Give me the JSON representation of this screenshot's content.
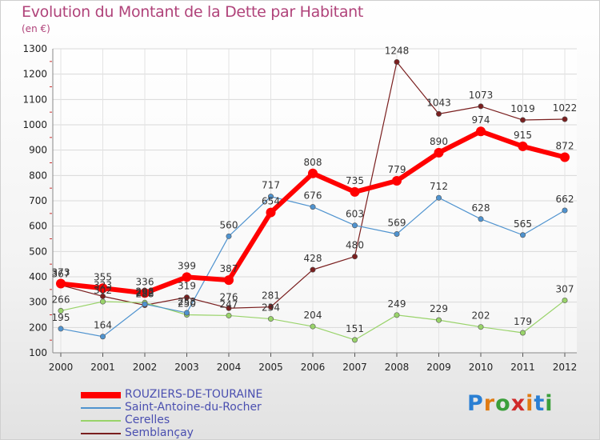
{
  "title": "Evolution du Montant de la Dette par Habitant",
  "subtitle": "(en €)",
  "logo": {
    "text": "Proxiti",
    "letters": [
      "P",
      "r",
      "o",
      "x",
      "i",
      "t",
      "i"
    ],
    "colors": [
      "#2a7fd3",
      "#e07b12",
      "#3a9f3a",
      "#d02a2a",
      "#e07b12",
      "#2a7fd3",
      "#3a9f3a"
    ]
  },
  "chart_data": {
    "type": "line",
    "title": "Evolution du Montant de la Dette par Habitant",
    "subtitle": "(en €)",
    "x": [
      "2000",
      "2001",
      "2002",
      "2003",
      "2004",
      "2005",
      "2006",
      "2007",
      "2008",
      "2009",
      "2010",
      "2011",
      "2012"
    ],
    "ylim": [
      100,
      1300
    ],
    "yticks": [
      100,
      200,
      300,
      400,
      500,
      600,
      700,
      800,
      900,
      1000,
      1100,
      1200,
      1300
    ],
    "grid": true,
    "legend_position": "bottom",
    "series": [
      {
        "name": "ROUZIERS-DE-TOURAINE",
        "color": "#ff0000",
        "values": [
          373,
          355,
          336,
          399,
          387,
          654,
          808,
          735,
          779,
          890,
          974,
          915,
          872
        ]
      },
      {
        "name": "Saint-Antoine-du-Rocher",
        "color": "#4f93cf",
        "values": [
          195,
          164,
          292,
          258,
          560,
          717,
          676,
          603,
          569,
          712,
          628,
          565,
          662
        ]
      },
      {
        "name": "Cerelles",
        "color": "#99d36a",
        "values": [
          266,
          302,
          298,
          250,
          247,
          234,
          204,
          151,
          249,
          229,
          202,
          179,
          307
        ]
      },
      {
        "name": "Semblançay",
        "color": "#7a1f1f",
        "values": [
          367,
          323,
          288,
          319,
          276,
          281,
          428,
          480,
          1248,
          1043,
          1073,
          1019,
          1022
        ]
      }
    ]
  }
}
